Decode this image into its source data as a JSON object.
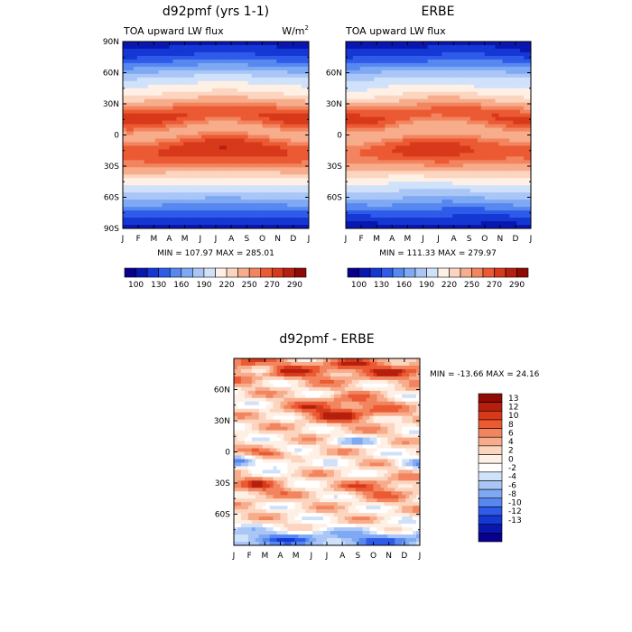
{
  "palette": {
    "abs": [
      "#08008c",
      "#0a16b0",
      "#1537d4",
      "#2f5bea",
      "#5688f0",
      "#7fa9f3",
      "#a9c6f7",
      "#d0e1fa",
      "#fff0e6",
      "#fcd5c0",
      "#f7ad8c",
      "#f2855f",
      "#eb5a32",
      "#d8391b",
      "#b51f0d",
      "#8f0a04"
    ],
    "diff": [
      "#08008c",
      "#0a16b0",
      "#1537d4",
      "#2f5bea",
      "#5688f0",
      "#7fa9f3",
      "#a9c6f7",
      "#d0e1fa",
      "#ffffff",
      "#fff0e6",
      "#fcd5c0",
      "#f7ad8c",
      "#f2855f",
      "#eb5a32",
      "#d8391b",
      "#b51f0d",
      "#8f0a04"
    ]
  },
  "chart_data": [
    {
      "type": "heatmap",
      "title": "d92pmf (yrs 1-1)",
      "subtitle_left": "TOA upward LW flux",
      "units_base": "W/m",
      "units_sup": "2",
      "x": [
        "J",
        "F",
        "M",
        "A",
        "M",
        "J",
        "J",
        "A",
        "S",
        "O",
        "N",
        "D",
        "J"
      ],
      "y_ticks": [
        "90N",
        "60N",
        "30N",
        "0",
        "30S",
        "60S",
        "90S"
      ],
      "y_tick_values": [
        90,
        60,
        30,
        0,
        -30,
        -60,
        -90
      ],
      "stats": "MIN = 107.97 MAX = 285.01",
      "levels": [
        100,
        130,
        160,
        190,
        220,
        250,
        270,
        290
      ],
      "levels_all": [
        100,
        115,
        130,
        145,
        160,
        175,
        190,
        205,
        220,
        235,
        250,
        260,
        270,
        280,
        290
      ],
      "min": 107.97,
      "max": 285.01
    },
    {
      "type": "heatmap",
      "title": "ERBE",
      "subtitle_left": "TOA upward LW flux",
      "x": [
        "J",
        "F",
        "M",
        "A",
        "M",
        "J",
        "J",
        "A",
        "S",
        "O",
        "N",
        "D",
        "J"
      ],
      "y_ticks": [
        "60N",
        "30N",
        "0",
        "30S",
        "60S"
      ],
      "y_tick_values": [
        60,
        30,
        0,
        -30,
        -60
      ],
      "stats": "MIN = 111.33 MAX = 279.97",
      "levels": [
        100,
        130,
        160,
        190,
        220,
        250,
        270,
        290
      ],
      "levels_all": [
        100,
        115,
        130,
        145,
        160,
        175,
        190,
        205,
        220,
        235,
        250,
        260,
        270,
        280,
        290
      ],
      "min": 111.33,
      "max": 279.97
    },
    {
      "type": "heatmap",
      "title": "d92pmf - ERBE",
      "x": [
        "J",
        "F",
        "M",
        "A",
        "M",
        "J",
        "J",
        "A",
        "S",
        "O",
        "N",
        "D",
        "J"
      ],
      "y_ticks": [
        "60N",
        "30N",
        "0",
        "30S",
        "60S"
      ],
      "y_tick_values": [
        60,
        30,
        0,
        -30,
        -60
      ],
      "stats": "MIN = -13.66 MAX =  24.16",
      "levels": [
        13,
        12,
        10,
        8,
        6,
        4,
        2,
        0,
        -2,
        -4,
        -6,
        -8,
        -10,
        -12,
        -13
      ],
      "levels_all": [
        -13,
        -12,
        -10,
        -8,
        -6,
        -4,
        -2,
        0,
        2,
        4,
        6,
        8,
        10,
        12,
        13
      ],
      "min": -13.66,
      "max": 24.16
    }
  ]
}
